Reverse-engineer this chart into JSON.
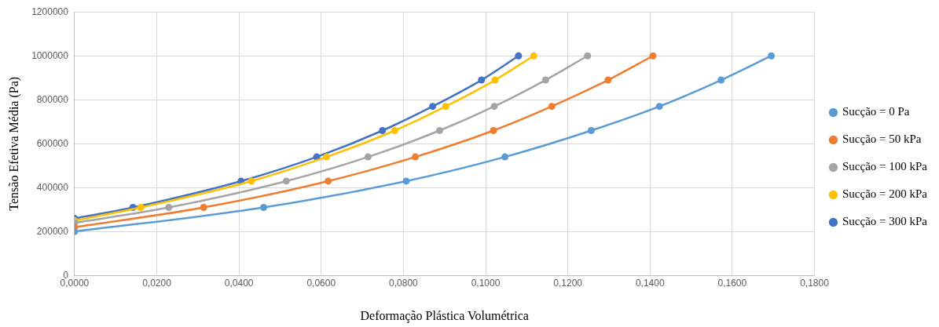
{
  "chart_data": {
    "type": "line",
    "xlabel": "Deformação Plástica Volumétrica",
    "ylabel": "Tensão Efetiva Média (Pa)",
    "xlim": [
      0,
      0.18
    ],
    "xticks": [
      {
        "value": 0,
        "label": "0,0000"
      },
      {
        "value": 0.02,
        "label": "0,0200"
      },
      {
        "value": 0.04,
        "label": "0,0400"
      },
      {
        "value": 0.06,
        "label": "0,0600"
      },
      {
        "value": 0.08,
        "label": "0,0800"
      },
      {
        "value": 0.1,
        "label": "0,1000"
      },
      {
        "value": 0.12,
        "label": "0,1200"
      },
      {
        "value": 0.14,
        "label": "0,1400"
      },
      {
        "value": 0.16,
        "label": "0,1600"
      },
      {
        "value": 0.18,
        "label": "0,1800"
      }
    ],
    "ylim": [
      0,
      1200000
    ],
    "yticks": [
      0,
      200000,
      400000,
      600000,
      800000,
      1000000,
      1200000
    ],
    "grid": true,
    "legend": "right",
    "marker": "circle",
    "line_style": "solid",
    "series": [
      {
        "name": "Sucção = 0 Pa",
        "color": "#5b9bd5",
        "x": [
          0,
          0.046,
          0.0807,
          0.1047,
          0.1257,
          0.1423,
          0.1573,
          0.1695
        ],
        "values": [
          200000,
          310000,
          430000,
          540000,
          660000,
          770000,
          890000,
          1000000
        ]
      },
      {
        "name": "Sucção = 50 kPa",
        "color": "#ed7d31",
        "x": [
          0,
          0.0314,
          0.0617,
          0.0829,
          0.1019,
          0.1161,
          0.1298,
          0.1407
        ],
        "values": [
          220000,
          310000,
          430000,
          540000,
          660000,
          770000,
          890000,
          1000000
        ]
      },
      {
        "name": "Sucção = 100 kPa",
        "color": "#a5a5a5",
        "x": [
          0,
          0.0229,
          0.0515,
          0.0714,
          0.0888,
          0.1021,
          0.1146,
          0.1248
        ],
        "values": [
          240000,
          310000,
          430000,
          540000,
          660000,
          770000,
          890000,
          1000000
        ]
      },
      {
        "name": "Sucção = 200 kPa",
        "color": "#ffc000",
        "x": [
          0,
          0.0161,
          0.043,
          0.0613,
          0.0779,
          0.0903,
          0.1023,
          0.1117
        ],
        "values": [
          250000,
          310000,
          430000,
          540000,
          660000,
          770000,
          890000,
          1000000
        ]
      },
      {
        "name": "Sucção = 300 kPa",
        "color": "#4472c4",
        "x": [
          0,
          0.0142,
          0.0405,
          0.0589,
          0.0749,
          0.0871,
          0.099,
          0.108
        ],
        "values": [
          260000,
          310000,
          430000,
          540000,
          660000,
          770000,
          890000,
          1000000
        ]
      }
    ]
  }
}
